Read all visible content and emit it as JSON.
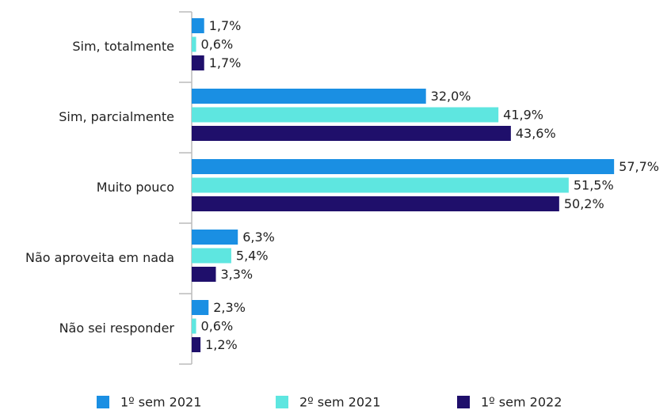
{
  "chart_data": {
    "type": "bar",
    "orientation": "horizontal",
    "categories": [
      "Sim, totalmente",
      "Sim, parcialmente",
      "Muito pouco",
      "Não aproveita em nada",
      "Não sei responder"
    ],
    "series": [
      {
        "name": "1º sem 2021",
        "color": "#1a8fe3",
        "values": [
          1.7,
          32.0,
          57.7,
          6.3,
          2.3
        ],
        "value_labels": [
          "1,7%",
          "32,0%",
          "57,7%",
          "6,3%",
          "2,3%"
        ]
      },
      {
        "name": "2º sem 2021",
        "color": "#5ee6e0",
        "values": [
          0.6,
          41.9,
          51.5,
          5.4,
          0.6
        ],
        "value_labels": [
          "0,6%",
          "41,9%",
          "51,5%",
          "5,4%",
          "0,6%"
        ]
      },
      {
        "name": "1º sem 2022",
        "color": "#1f0f6b",
        "values": [
          1.7,
          43.6,
          50.2,
          3.3,
          1.2
        ],
        "value_labels": [
          "1,7%",
          "43,6%",
          "50,2%",
          "3,3%",
          "1,2%"
        ]
      }
    ],
    "legend": "bottom"
  }
}
